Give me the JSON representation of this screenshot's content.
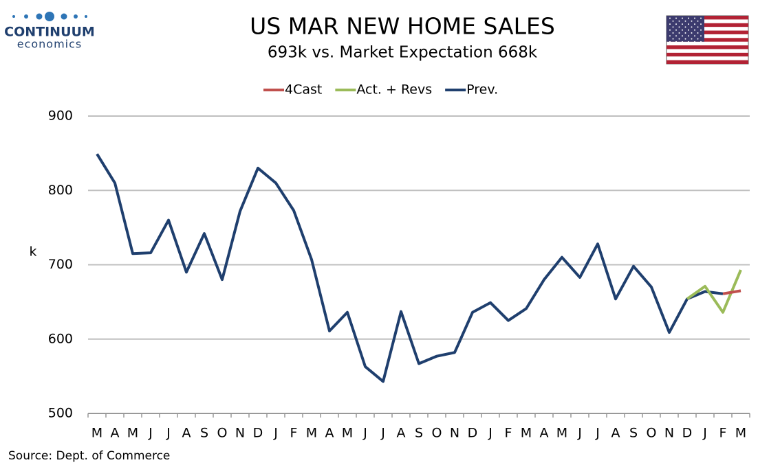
{
  "logo": {
    "name": "CONTINUUM",
    "sub": "economics"
  },
  "chart_data": {
    "type": "line",
    "title": "US MAR NEW HOME SALES",
    "subtitle": "693k vs. Market Expectation 668k",
    "y_label": "k",
    "source": "Source: Dept. of Commerce",
    "categories": [
      "M",
      "A",
      "M",
      "J",
      "J",
      "A",
      "S",
      "O",
      "N",
      "D",
      "J",
      "F",
      "M",
      "A",
      "M",
      "J",
      "J",
      "A",
      "S",
      "O",
      "N",
      "D",
      "J",
      "F",
      "M",
      "A",
      "M",
      "J",
      "J",
      "A",
      "S",
      "O",
      "N",
      "D",
      "J",
      "F",
      "M"
    ],
    "series": [
      {
        "name": "4Cast",
        "color": "#c0504d",
        "values": [
          null,
          null,
          null,
          null,
          null,
          null,
          null,
          null,
          null,
          null,
          null,
          null,
          null,
          null,
          null,
          null,
          null,
          null,
          null,
          null,
          null,
          null,
          null,
          null,
          null,
          null,
          null,
          null,
          null,
          null,
          null,
          null,
          null,
          null,
          null,
          661,
          665
        ]
      },
      {
        "name": "Act. + Revs",
        "color": "#9bbb59",
        "values": [
          null,
          null,
          null,
          null,
          null,
          null,
          null,
          null,
          null,
          null,
          null,
          null,
          null,
          null,
          null,
          null,
          null,
          null,
          null,
          null,
          null,
          null,
          null,
          null,
          null,
          null,
          null,
          null,
          null,
          null,
          null,
          null,
          null,
          654,
          671,
          636,
          693
        ]
      },
      {
        "name": "Prev.",
        "color": "#1f3f6e",
        "values": [
          849,
          810,
          715,
          716,
          760,
          690,
          742,
          680,
          772,
          830,
          810,
          773,
          707,
          611,
          636,
          563,
          543,
          637,
          567,
          577,
          582,
          636,
          649,
          625,
          641,
          680,
          710,
          683,
          728,
          654,
          698,
          670,
          609,
          654,
          664,
          661,
          null
        ]
      }
    ],
    "ylim": [
      500,
      900
    ],
    "yticks": [
      500,
      600,
      700,
      800,
      900
    ],
    "grid": true,
    "legend": "top"
  }
}
